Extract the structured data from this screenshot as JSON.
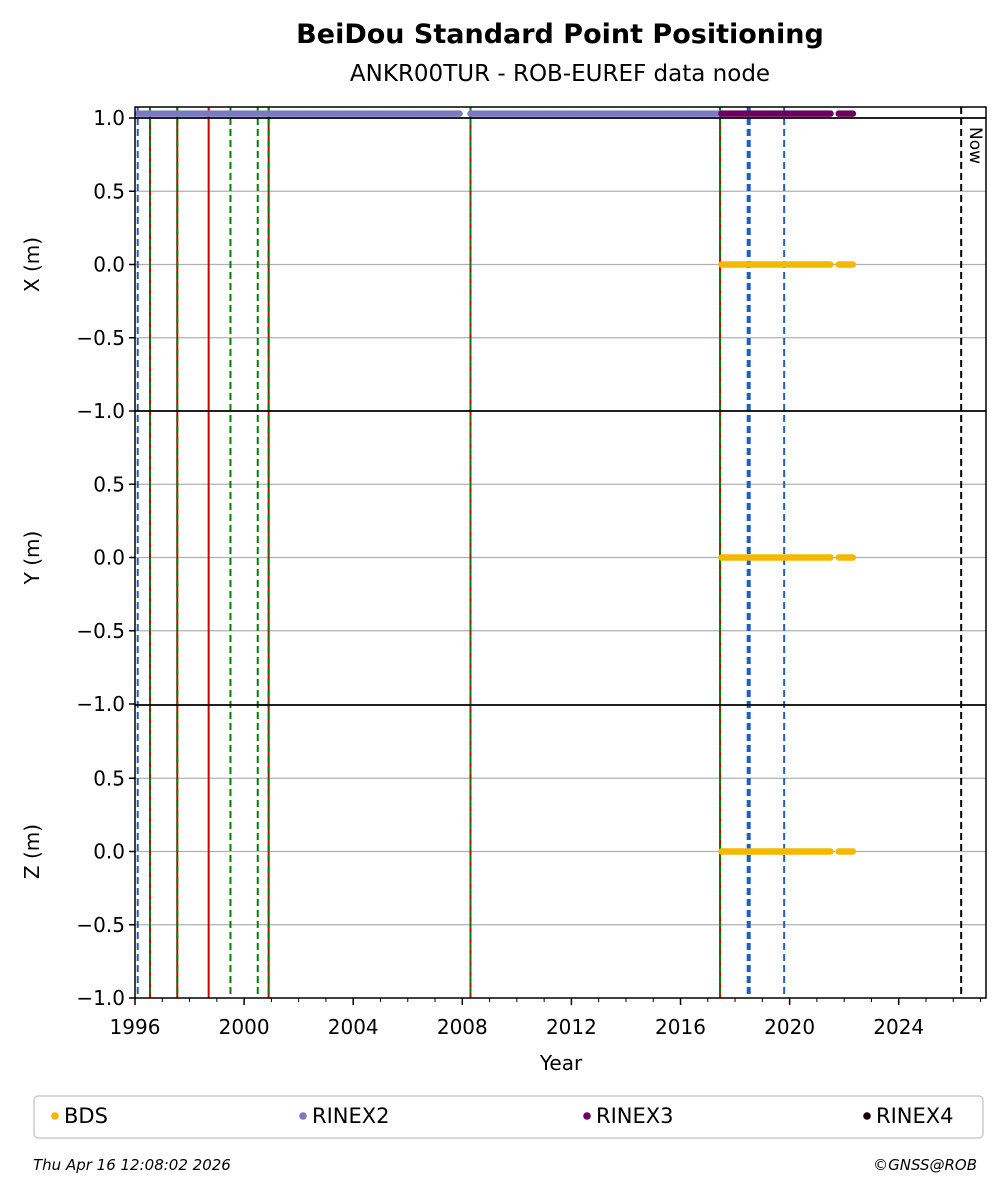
{
  "title": "BeiDou Standard Point Positioning",
  "subtitle": "ANKR00TUR - ROB-EUREF data node",
  "footer": {
    "timestamp": "Thu Apr 16 12:08:02 2026",
    "copyright": "©GNSS@ROB"
  },
  "now_label": "Now",
  "chart_data": {
    "type": "scatter",
    "xlabel": "Year",
    "xlim": [
      1996,
      2027.2
    ],
    "x_ticks": [
      1996,
      2000,
      2004,
      2008,
      2012,
      2016,
      2020,
      2024
    ],
    "legend_placement": "bottom",
    "grid": true,
    "panels": [
      {
        "ylabel": "X (m)",
        "ylim": [
          -1.0,
          1.0
        ],
        "y_ticks": [
          "1.0",
          "0.5",
          "0.0",
          "−0.5",
          "−1.0"
        ]
      },
      {
        "ylabel": "Y (m)",
        "ylim": [
          -1.0,
          1.0
        ],
        "y_ticks": [
          "0.5",
          "0.0",
          "−0.5",
          "−1.0"
        ]
      },
      {
        "ylabel": "Z (m)",
        "ylim": [
          -1.0,
          1.0
        ],
        "y_ticks": [
          "0.5",
          "0.0",
          "−0.5",
          "−1.0"
        ]
      }
    ],
    "series": [
      {
        "name": "BDS",
        "color": "#f5b800",
        "y": 0.0,
        "panels": [
          0,
          1,
          2
        ],
        "segments": [
          [
            2017.5,
            2021.5
          ],
          [
            2021.8,
            2022.35
          ]
        ]
      },
      {
        "name": "RINEX2",
        "color": "#7b7bc1",
        "y": 1.03,
        "panels": [
          0
        ],
        "segments": [
          [
            1996.1,
            2007.9
          ],
          [
            2008.3,
            2017.5
          ]
        ]
      },
      {
        "name": "RINEX3",
        "color": "#6b0060",
        "y": 1.03,
        "panels": [
          0
        ],
        "segments": [
          [
            2017.5,
            2021.5
          ],
          [
            2021.8,
            2022.35
          ]
        ]
      },
      {
        "name": "RINEX4",
        "color": "#1a0010",
        "y": 1.03,
        "panels": [
          0
        ],
        "segments": []
      }
    ],
    "event_lines": [
      {
        "x": 1996.1,
        "color": "#1f5fbf",
        "style": "dashed"
      },
      {
        "x": 1996.55,
        "color": "#cc0000",
        "style": "solid"
      },
      {
        "x": 1996.55,
        "color": "#008000",
        "style": "dashed"
      },
      {
        "x": 1997.55,
        "color": "#cc0000",
        "style": "solid"
      },
      {
        "x": 1997.55,
        "color": "#008000",
        "style": "dashed"
      },
      {
        "x": 1998.7,
        "color": "#cc0000",
        "style": "solid"
      },
      {
        "x": 1999.5,
        "color": "#008000",
        "style": "dashed"
      },
      {
        "x": 2000.5,
        "color": "#008000",
        "style": "dashed"
      },
      {
        "x": 2000.9,
        "color": "#cc0000",
        "style": "solid"
      },
      {
        "x": 2000.9,
        "color": "#008000",
        "style": "dashed"
      },
      {
        "x": 2008.3,
        "color": "#cc0000",
        "style": "solid"
      },
      {
        "x": 2008.3,
        "color": "#008000",
        "style": "dashed"
      },
      {
        "x": 2017.45,
        "color": "#cc0000",
        "style": "solid"
      },
      {
        "x": 2017.45,
        "color": "#008000",
        "style": "dashed"
      },
      {
        "x": 2018.5,
        "color": "#1f5fbf",
        "style": "dashed",
        "bold": true
      },
      {
        "x": 2019.8,
        "color": "#1f5fbf",
        "style": "dashed"
      },
      {
        "x": 2026.29,
        "color": "#000000",
        "style": "dashed",
        "now": true
      }
    ]
  }
}
